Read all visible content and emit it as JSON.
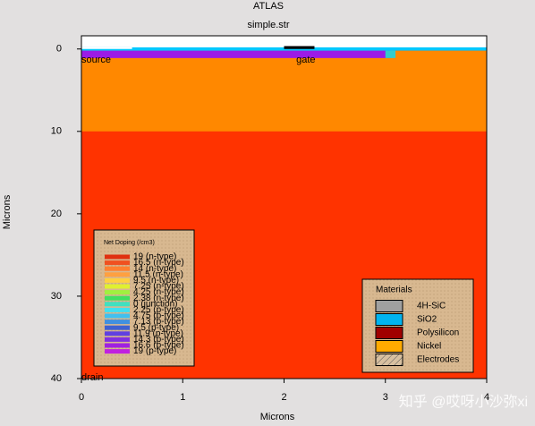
{
  "chart_data": {
    "type": "region-map",
    "title": "ATLAS",
    "subtitle": "simple.str",
    "x_label": "Microns",
    "y_label": "Microns",
    "xlim": [
      0,
      4
    ],
    "ylim": [
      -1.6,
      40
    ],
    "xticks": [
      0,
      1,
      2,
      3,
      4
    ],
    "yticks": [
      0,
      10,
      20,
      30,
      40
    ],
    "regions": [
      {
        "x": [
          0,
          4
        ],
        "y": [
          0,
          40
        ],
        "color": "#ff3300"
      },
      {
        "x": [
          0,
          4
        ],
        "y": [
          0.2,
          10
        ],
        "color": "#ff8800"
      },
      {
        "x": [
          0,
          3.05
        ],
        "y": [
          0.2,
          1.1
        ],
        "color": "#9b1be6"
      },
      {
        "x": [
          3.0,
          3.1
        ],
        "y": [
          0.2,
          1.1
        ],
        "color": "#33cccc"
      },
      {
        "x": [
          0,
          4
        ],
        "y": [
          -0.2,
          0.2
        ],
        "color": "#00c8ff"
      },
      {
        "x": [
          2.0,
          2.3
        ],
        "y": [
          -0.35,
          0
        ],
        "color": "#000000"
      },
      {
        "x": [
          0,
          0.5
        ],
        "y": [
          -0.2,
          0
        ],
        "color": "#ffffff"
      }
    ],
    "electrode_labels": [
      {
        "text": "source",
        "x": 0,
        "y": 1.1
      },
      {
        "text": "gate",
        "x": 2.12,
        "y": 1.1
      },
      {
        "text": "drain",
        "x": 0,
        "y": 39.7
      }
    ],
    "doping_legend": {
      "title": "Net Doping (/cm3)",
      "entries": [
        {
          "label": "19 (n-type)",
          "color": "#e03010"
        },
        {
          "label": "16.5 (n-type)",
          "color": "#f05020"
        },
        {
          "label": "14 (n-type)",
          "color": "#ff8030"
        },
        {
          "label": "11.5 (n-type)",
          "color": "#ffa040"
        },
        {
          "label": "9.5 (n-type)",
          "color": "#ffd040"
        },
        {
          "label": "7.25 (n-type)",
          "color": "#e0f030"
        },
        {
          "label": "4.25 (n-type)",
          "color": "#a0f040"
        },
        {
          "label": "2.38 (n-type)",
          "color": "#40e060"
        },
        {
          "label": "0 (junction)",
          "color": "#40e0c0"
        },
        {
          "label": "2.25 (p-type)",
          "color": "#40e0f0"
        },
        {
          "label": "4.75 (p-type)",
          "color": "#40c0f0"
        },
        {
          "label": "7.13 (p-type)",
          "color": "#4090e0"
        },
        {
          "label": "9.5 (p-type)",
          "color": "#4060d0"
        },
        {
          "label": "11.9 (p-type)",
          "color": "#6040e0"
        },
        {
          "label": "14.3 (p-type)",
          "color": "#8030e0"
        },
        {
          "label": "16.6 (p-type)",
          "color": "#a020e0"
        },
        {
          "label": "19 (p-type)",
          "color": "#c020e0"
        }
      ]
    },
    "materials_legend": {
      "title": "Materials",
      "entries": [
        {
          "label": "4H-SiC",
          "color": "#a0a0a0"
        },
        {
          "label": "SiO2",
          "color": "#00b4f0"
        },
        {
          "label": "Polysilicon",
          "color": "#a00000"
        },
        {
          "label": "Nickel",
          "color": "#ffaa00"
        },
        {
          "label": "Electrodes",
          "color": "hatch"
        }
      ]
    },
    "watermark": "知乎 @哎呀小沙弥xi"
  }
}
